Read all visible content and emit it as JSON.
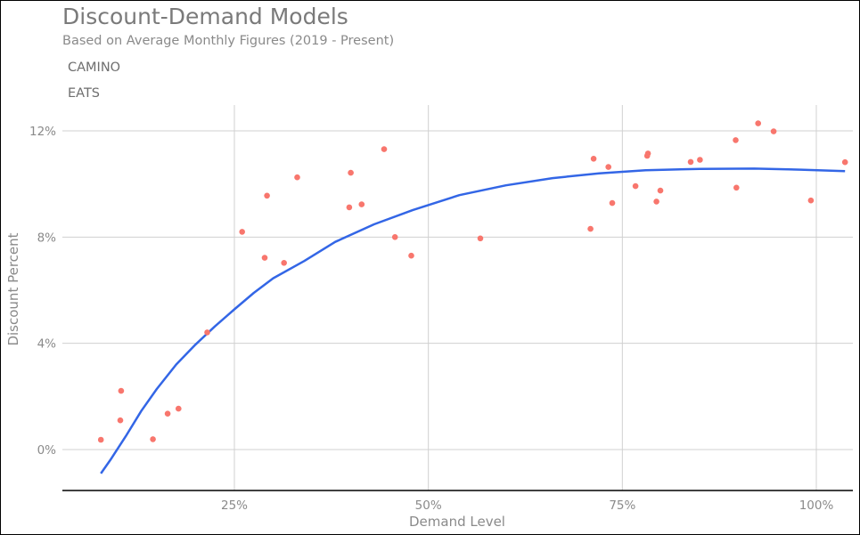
{
  "chart_data": {
    "type": "scatter",
    "title": "Discount-Demand Models",
    "subtitle": "Based on Average Monthly Figures (2019 - Present)",
    "legend": [
      "CAMINO",
      "EATS"
    ],
    "xlabel": "Demand Level",
    "ylabel": "Discount Percent",
    "xlim": [
      0.06,
      1.0
    ],
    "ylim": [
      -0.014,
      0.13
    ],
    "x_ticks": [
      0.25,
      0.5,
      0.75,
      1.0
    ],
    "x_tick_labels": [
      "25%",
      "50%",
      "75%",
      "100%"
    ],
    "y_ticks": [
      0.0,
      0.04,
      0.08,
      0.12
    ],
    "y_tick_labels": [
      "0%",
      "4%",
      "8%",
      "12%"
    ],
    "grid": true,
    "colors": {
      "points": "#f8766d",
      "fit": "#3366e6",
      "grid": "#d0d0d0",
      "axis": "#000000"
    },
    "points": [
      {
        "x": 0.078,
        "y": 0.0037
      },
      {
        "x": 0.103,
        "y": 0.011
      },
      {
        "x": 0.104,
        "y": 0.0221
      },
      {
        "x": 0.145,
        "y": 0.0039
      },
      {
        "x": 0.164,
        "y": 0.0135
      },
      {
        "x": 0.178,
        "y": 0.0154
      },
      {
        "x": 0.215,
        "y": 0.0441
      },
      {
        "x": 0.26,
        "y": 0.082
      },
      {
        "x": 0.289,
        "y": 0.0722
      },
      {
        "x": 0.292,
        "y": 0.0956
      },
      {
        "x": 0.314,
        "y": 0.0703
      },
      {
        "x": 0.331,
        "y": 0.1025
      },
      {
        "x": 0.398,
        "y": 0.0912
      },
      {
        "x": 0.4,
        "y": 0.1042
      },
      {
        "x": 0.414,
        "y": 0.0923
      },
      {
        "x": 0.443,
        "y": 0.1131
      },
      {
        "x": 0.457,
        "y": 0.08
      },
      {
        "x": 0.478,
        "y": 0.073
      },
      {
        "x": 0.567,
        "y": 0.0795
      },
      {
        "x": 0.709,
        "y": 0.0831
      },
      {
        "x": 0.713,
        "y": 0.1095
      },
      {
        "x": 0.732,
        "y": 0.1064
      },
      {
        "x": 0.737,
        "y": 0.0928
      },
      {
        "x": 0.767,
        "y": 0.0992
      },
      {
        "x": 0.782,
        "y": 0.1106
      },
      {
        "x": 0.783,
        "y": 0.1115
      },
      {
        "x": 0.794,
        "y": 0.0934
      },
      {
        "x": 0.799,
        "y": 0.0975
      },
      {
        "x": 0.838,
        "y": 0.1083
      },
      {
        "x": 0.85,
        "y": 0.1091
      },
      {
        "x": 0.896,
        "y": 0.1165
      },
      {
        "x": 0.897,
        "y": 0.0986
      },
      {
        "x": 0.925,
        "y": 0.1228
      },
      {
        "x": 0.945,
        "y": 0.1198
      },
      {
        "x": 0.993,
        "y": 0.0938
      },
      {
        "x": 1.037,
        "y": 0.1082
      }
    ],
    "fit_curve": [
      {
        "x": 0.078,
        "y": -0.009
      },
      {
        "x": 0.09,
        "y": -0.004
      },
      {
        "x": 0.11,
        "y": 0.005
      },
      {
        "x": 0.13,
        "y": 0.0145
      },
      {
        "x": 0.15,
        "y": 0.0228
      },
      {
        "x": 0.175,
        "y": 0.032
      },
      {
        "x": 0.2,
        "y": 0.0396
      },
      {
        "x": 0.225,
        "y": 0.0464
      },
      {
        "x": 0.25,
        "y": 0.0528
      },
      {
        "x": 0.275,
        "y": 0.059
      },
      {
        "x": 0.3,
        "y": 0.0645
      },
      {
        "x": 0.34,
        "y": 0.071
      },
      {
        "x": 0.38,
        "y": 0.0782
      },
      {
        "x": 0.43,
        "y": 0.0848
      },
      {
        "x": 0.48,
        "y": 0.0902
      },
      {
        "x": 0.54,
        "y": 0.0958
      },
      {
        "x": 0.6,
        "y": 0.0995
      },
      {
        "x": 0.66,
        "y": 0.1022
      },
      {
        "x": 0.72,
        "y": 0.104
      },
      {
        "x": 0.78,
        "y": 0.1052
      },
      {
        "x": 0.85,
        "y": 0.1057
      },
      {
        "x": 0.92,
        "y": 0.1058
      },
      {
        "x": 0.98,
        "y": 0.1054
      },
      {
        "x": 1.037,
        "y": 0.1048
      }
    ]
  }
}
